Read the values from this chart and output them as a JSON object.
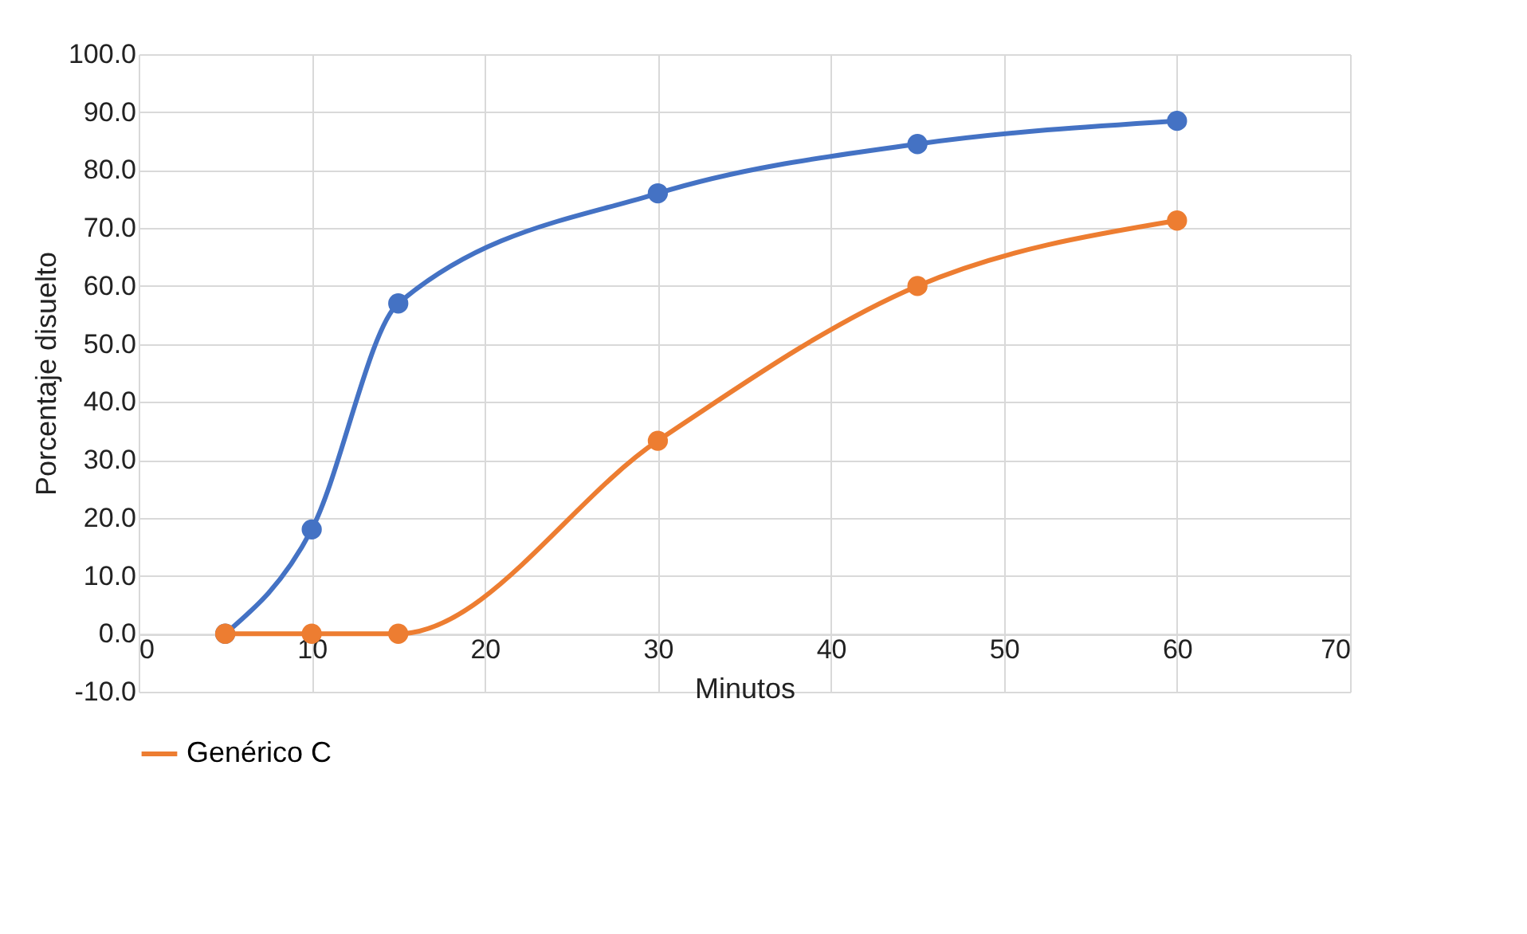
{
  "chart_data": {
    "type": "line",
    "xlabel": "Minutos",
    "ylabel": "Porcentaje disuelto",
    "x": [
      5,
      10,
      15,
      30,
      45,
      60
    ],
    "series": [
      {
        "color": "#4472c4",
        "values": [
          0,
          18,
          57,
          76,
          84.5,
          88.5
        ]
      },
      {
        "name": "Genérico C",
        "color": "#ed7d31",
        "values": [
          0,
          0,
          0,
          33.3,
          60,
          71.3
        ]
      }
    ],
    "xlim": [
      0,
      70
    ],
    "xticks": [
      0,
      10,
      20,
      30,
      40,
      50,
      60,
      70
    ],
    "ylim": [
      -10,
      100
    ],
    "yticks": [
      {
        "value": -10,
        "label": "-10.0"
      },
      {
        "value": 0,
        "label": "0.0"
      },
      {
        "value": 10,
        "label": "10.0"
      },
      {
        "value": 20,
        "label": "20.0"
      },
      {
        "value": 30,
        "label": "30.0"
      },
      {
        "value": 40,
        "label": "40.0"
      },
      {
        "value": 50,
        "label": "50.0"
      },
      {
        "value": 60,
        "label": "60.0"
      },
      {
        "value": 70,
        "label": "70.0"
      },
      {
        "value": 80,
        "label": "80.0"
      },
      {
        "value": 90,
        "label": "90.0"
      },
      {
        "value": 100,
        "label": "100.0"
      }
    ],
    "grid": true,
    "legend": "bottom",
    "marker": "circle",
    "line_style": "solid"
  }
}
